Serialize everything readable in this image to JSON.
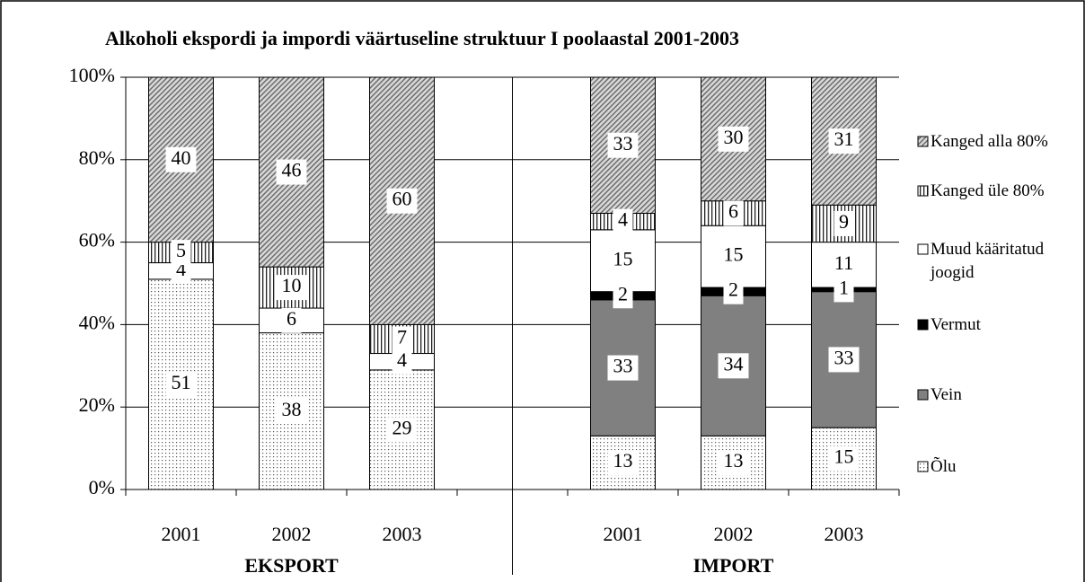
{
  "chart_data": {
    "type": "stacked_bar",
    "title": "Alkoholi ekspordi ja impordi väärtuseline struktuur I poolaastal 2001-2003",
    "categories": [
      "2001",
      "2002",
      "2003",
      null,
      "2001",
      "2002",
      "2003"
    ],
    "groups": [
      "EKSPORT",
      "IMPORT"
    ],
    "series": [
      {
        "name": "Õlu",
        "color": "#ffffff",
        "pattern": "dots",
        "values": [
          51,
          38,
          29,
          null,
          13,
          13,
          15
        ]
      },
      {
        "name": "Vein",
        "color": "#808080",
        "pattern": "solid",
        "values": [
          null,
          null,
          null,
          null,
          33,
          34,
          33
        ]
      },
      {
        "name": "Vermut",
        "color": "#000000",
        "pattern": "solid",
        "values": [
          null,
          null,
          null,
          null,
          2,
          2,
          1
        ]
      },
      {
        "name": "Muud kääritatud joogid",
        "color": "#ffffff",
        "pattern": "solid",
        "values": [
          4,
          6,
          4,
          null,
          15,
          15,
          11
        ]
      },
      {
        "name": "Kanged üle 80%",
        "color": "#ffffff",
        "pattern": "vertical",
        "values": [
          5,
          10,
          7,
          null,
          4,
          6,
          9
        ]
      },
      {
        "name": "Kanged alla 80%",
        "color": "#b0b0b0",
        "pattern": "diagonal",
        "values": [
          40,
          46,
          60,
          null,
          33,
          30,
          31
        ]
      }
    ],
    "ylim": [
      0,
      100
    ],
    "yticks": [
      {
        "value": 0,
        "label": "0%"
      },
      {
        "value": 20,
        "label": "20%"
      },
      {
        "value": 40,
        "label": "40%"
      },
      {
        "value": 60,
        "label": "60%"
      },
      {
        "value": 80,
        "label": "80%"
      },
      {
        "value": 100,
        "label": "100%"
      }
    ],
    "grid": true
  }
}
